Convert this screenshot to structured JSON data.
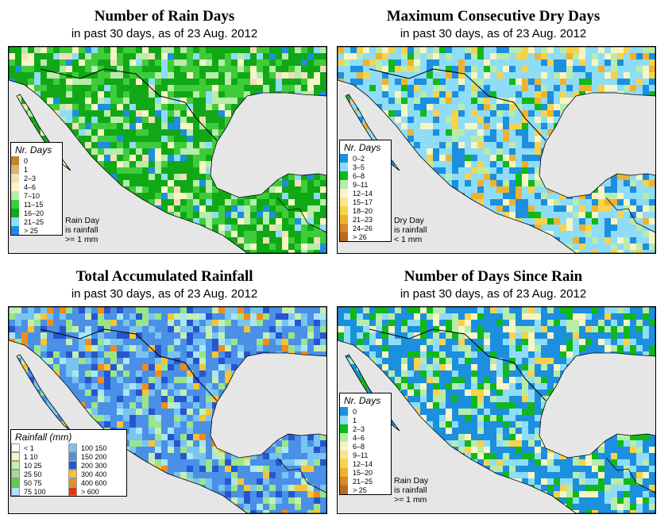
{
  "panels": [
    {
      "title": "Number of Rain Days",
      "subtitle": "in past 30 days, as of  23 Aug. 2012",
      "legend_title": "Nr. Days",
      "legend": [
        {
          "label": "0",
          "color": "#b8862c"
        },
        {
          "label": "1",
          "color": "#d8b27a"
        },
        {
          "label": "2–3",
          "color": "#f2dfb8"
        },
        {
          "label": "4–6",
          "color": "#f7f5c4"
        },
        {
          "label": "7–10",
          "color": "#b7ecab"
        },
        {
          "label": "11–15",
          "color": "#3fcc3b"
        },
        {
          "label": "16–20",
          "color": "#10a816"
        },
        {
          "label": "21–25",
          "color": "#8fdcf7"
        },
        {
          "label": "> 25",
          "color": "#1c8fde"
        }
      ],
      "note": [
        "Rain Day",
        "is rainfall",
        ">= 1 mm"
      ]
    },
    {
      "title": "Maximum Consecutive Dry Days",
      "subtitle": "in past 30 days, as of  23 Aug. 2012",
      "legend_title": "Nr. Days",
      "legend": [
        {
          "label": "0–2",
          "color": "#1c8fde"
        },
        {
          "label": "3–5",
          "color": "#8fdcf7"
        },
        {
          "label": "6–8",
          "color": "#10b81a"
        },
        {
          "label": "9–11",
          "color": "#b7ecab"
        },
        {
          "label": "12–14",
          "color": "#f7f5c4"
        },
        {
          "label": "15–17",
          "color": "#fbe58c"
        },
        {
          "label": "18–20",
          "color": "#f7d24a"
        },
        {
          "label": "21–23",
          "color": "#edb32e"
        },
        {
          "label": "24–26",
          "color": "#d68a2a"
        },
        {
          "label": "> 26",
          "color": "#b86a1e"
        }
      ],
      "note": [
        "Dry Day",
        "is rainfall",
        "< 1 mm"
      ]
    },
    {
      "title": "Total Accumulated Rainfall",
      "subtitle": "in past 30 days, as of  23 Aug. 2012",
      "legend_title": "Rainfall (mm)",
      "legend": [
        {
          "label": "< 1",
          "color": "#ffffff"
        },
        {
          "label": "1    10",
          "color": "#f7f5c4"
        },
        {
          "label": "10    25",
          "color": "#c4efb4"
        },
        {
          "label": "25    50",
          "color": "#9ae58a"
        },
        {
          "label": "50    75",
          "color": "#5ccc4f"
        },
        {
          "label": "75    100",
          "color": "#a9e6f5"
        },
        {
          "label": "100    150",
          "color": "#79c4f0"
        },
        {
          "label": "150    200",
          "color": "#4a90e6"
        },
        {
          "label": "200    300",
          "color": "#2656cf"
        },
        {
          "label": "300    400",
          "color": "#f6c435"
        },
        {
          "label": "400    600",
          "color": "#f08c1c"
        },
        {
          "label": "> 600",
          "color": "#e8330f"
        }
      ],
      "note": []
    },
    {
      "title": "Number of Days Since Rain",
      "subtitle": "in past 30 days, as of  23 Aug. 2012",
      "legend_title": "Nr. Days",
      "legend": [
        {
          "label": "0",
          "color": "#1c8fde"
        },
        {
          "label": "1",
          "color": "#8fdcf7"
        },
        {
          "label": "2–3",
          "color": "#10b81a"
        },
        {
          "label": "4–6",
          "color": "#b7ecab"
        },
        {
          "label": "6–8",
          "color": "#f7f5c4"
        },
        {
          "label": "9–11",
          "color": "#fbe58c"
        },
        {
          "label": "12–14",
          "color": "#f7d24a"
        },
        {
          "label": "15–20",
          "color": "#edb32e"
        },
        {
          "label": "21–25",
          "color": "#d68a2a"
        },
        {
          "label": "> 25",
          "color": "#b86a1e"
        }
      ],
      "note": [
        "Rain Day",
        "is rainfall",
        ">= 1 mm"
      ]
    }
  ],
  "colors": {
    "ocean": "#e6e6e6"
  }
}
